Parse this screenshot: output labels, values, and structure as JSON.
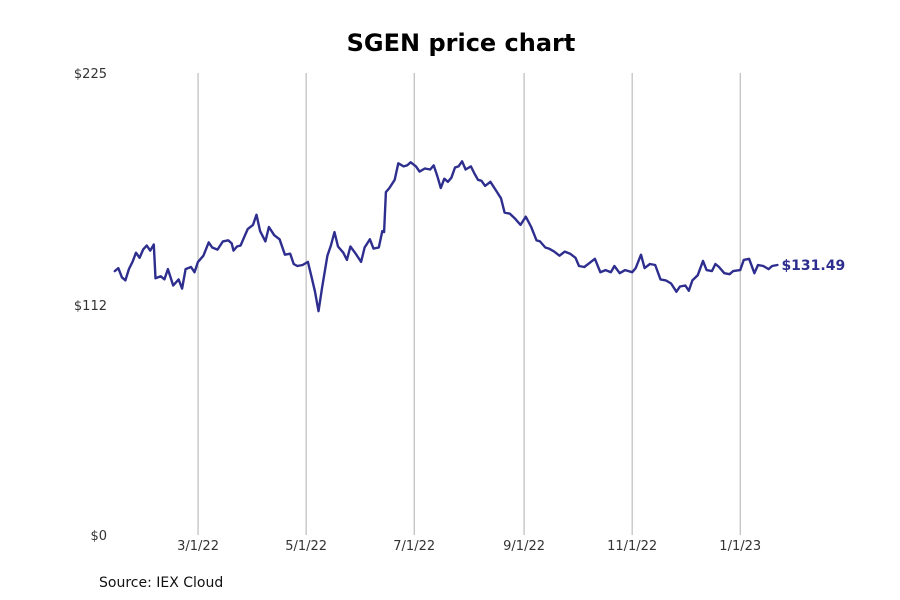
{
  "chart_data": {
    "type": "line",
    "title": "SGEN price chart",
    "xlabel": "",
    "ylabel": "",
    "ylim": [
      0,
      225
    ],
    "xlim": [
      "2022-01-12",
      "2023-02-28"
    ],
    "y_ticks": [
      {
        "value": 0,
        "label": "$0"
      },
      {
        "value": 112,
        "label": "$112"
      },
      {
        "value": 225,
        "label": "$225"
      }
    ],
    "x_ticks": [
      {
        "date": "2022-03-01",
        "label": "3/1/22"
      },
      {
        "date": "2022-05-01",
        "label": "5/1/22"
      },
      {
        "date": "2022-07-01",
        "label": "7/1/22"
      },
      {
        "date": "2022-09-01",
        "label": "9/1/22"
      },
      {
        "date": "2022-11-01",
        "label": "11/1/22"
      },
      {
        "date": "2023-01-01",
        "label": "1/1/23"
      }
    ],
    "grid": "vertical",
    "series": [
      {
        "color": "#2e2e8f",
        "points": [
          [
            "2022-01-13",
            128.5
          ],
          [
            "2022-01-15",
            130.0
          ],
          [
            "2022-01-17",
            125.5
          ],
          [
            "2022-01-19",
            124.0
          ],
          [
            "2022-01-21",
            129.5
          ],
          [
            "2022-01-23",
            133.0
          ],
          [
            "2022-01-25",
            137.5
          ],
          [
            "2022-01-27",
            135.0
          ],
          [
            "2022-01-29",
            139.0
          ],
          [
            "2022-01-31",
            141.0
          ],
          [
            "2022-02-02",
            138.5
          ],
          [
            "2022-02-04",
            141.5
          ],
          [
            "2022-02-05",
            125.0
          ],
          [
            "2022-02-08",
            126.0
          ],
          [
            "2022-02-10",
            124.5
          ],
          [
            "2022-02-12",
            129.5
          ],
          [
            "2022-02-15",
            121.5
          ],
          [
            "2022-02-18",
            124.5
          ],
          [
            "2022-02-20",
            120.0
          ],
          [
            "2022-02-22",
            129.5
          ],
          [
            "2022-02-25",
            130.5
          ],
          [
            "2022-02-27",
            128.0
          ],
          [
            "2022-03-01",
            133.0
          ],
          [
            "2022-03-04",
            136.0
          ],
          [
            "2022-03-07",
            142.5
          ],
          [
            "2022-03-09",
            140.0
          ],
          [
            "2022-03-12",
            139.0
          ],
          [
            "2022-03-15",
            143.0
          ],
          [
            "2022-03-18",
            143.5
          ],
          [
            "2022-03-20",
            142.0
          ],
          [
            "2022-03-21",
            138.5
          ],
          [
            "2022-03-23",
            140.5
          ],
          [
            "2022-03-25",
            141.0
          ],
          [
            "2022-03-27",
            145.0
          ],
          [
            "2022-03-29",
            149.0
          ],
          [
            "2022-04-01",
            151.0
          ],
          [
            "2022-04-03",
            156.0
          ],
          [
            "2022-04-05",
            148.0
          ],
          [
            "2022-04-08",
            143.0
          ],
          [
            "2022-04-10",
            150.0
          ],
          [
            "2022-04-13",
            146.0
          ],
          [
            "2022-04-16",
            144.0
          ],
          [
            "2022-04-19",
            136.5
          ],
          [
            "2022-04-22",
            137.0
          ],
          [
            "2022-04-24",
            132.0
          ],
          [
            "2022-04-26",
            131.0
          ],
          [
            "2022-04-29",
            131.5
          ],
          [
            "2022-05-02",
            133.0
          ],
          [
            "2022-05-04",
            126.0
          ],
          [
            "2022-05-06",
            118.5
          ],
          [
            "2022-05-08",
            109.0
          ],
          [
            "2022-05-10",
            120.5
          ],
          [
            "2022-05-13",
            136.0
          ],
          [
            "2022-05-15",
            141.0
          ],
          [
            "2022-05-17",
            147.5
          ],
          [
            "2022-05-19",
            140.5
          ],
          [
            "2022-05-22",
            137.5
          ],
          [
            "2022-05-24",
            134.0
          ],
          [
            "2022-05-26",
            140.5
          ],
          [
            "2022-05-29",
            137.0
          ],
          [
            "2022-06-01",
            133.0
          ],
          [
            "2022-06-03",
            140.0
          ],
          [
            "2022-06-06",
            144.0
          ],
          [
            "2022-06-08",
            139.5
          ],
          [
            "2022-06-11",
            140.0
          ],
          [
            "2022-06-13",
            148.0
          ],
          [
            "2022-06-14",
            147.5
          ],
          [
            "2022-06-15",
            167.0
          ],
          [
            "2022-06-17",
            169.0
          ],
          [
            "2022-06-20",
            173.0
          ],
          [
            "2022-06-22",
            181.0
          ],
          [
            "2022-06-25",
            179.5
          ],
          [
            "2022-06-27",
            180.0
          ],
          [
            "2022-06-29",
            181.5
          ],
          [
            "2022-07-02",
            179.5
          ],
          [
            "2022-07-04",
            177.0
          ],
          [
            "2022-07-07",
            178.5
          ],
          [
            "2022-07-10",
            178.0
          ],
          [
            "2022-07-12",
            180.0
          ],
          [
            "2022-07-14",
            175.0
          ],
          [
            "2022-07-16",
            169.0
          ],
          [
            "2022-07-18",
            173.5
          ],
          [
            "2022-07-20",
            172.0
          ],
          [
            "2022-07-22",
            174.0
          ],
          [
            "2022-07-24",
            179.0
          ],
          [
            "2022-07-26",
            179.5
          ],
          [
            "2022-07-28",
            182.0
          ],
          [
            "2022-07-30",
            178.0
          ],
          [
            "2022-08-02",
            179.5
          ],
          [
            "2022-08-04",
            176.0
          ],
          [
            "2022-08-06",
            173.0
          ],
          [
            "2022-08-08",
            172.5
          ],
          [
            "2022-08-10",
            170.0
          ],
          [
            "2022-08-13",
            172.0
          ],
          [
            "2022-08-16",
            168.0
          ],
          [
            "2022-08-19",
            164.0
          ],
          [
            "2022-08-21",
            157.0
          ],
          [
            "2022-08-24",
            156.5
          ],
          [
            "2022-08-27",
            154.0
          ],
          [
            "2022-08-30",
            151.0
          ],
          [
            "2022-09-02",
            155.0
          ],
          [
            "2022-09-05",
            150.0
          ],
          [
            "2022-09-08",
            143.5
          ],
          [
            "2022-09-10",
            143.0
          ],
          [
            "2022-09-13",
            140.0
          ],
          [
            "2022-09-15",
            139.5
          ],
          [
            "2022-09-18",
            138.0
          ],
          [
            "2022-09-21",
            136.0
          ],
          [
            "2022-09-24",
            138.0
          ],
          [
            "2022-09-27",
            137.0
          ],
          [
            "2022-09-30",
            135.0
          ],
          [
            "2022-10-02",
            131.0
          ],
          [
            "2022-10-05",
            130.5
          ],
          [
            "2022-10-08",
            132.5
          ],
          [
            "2022-10-11",
            134.5
          ],
          [
            "2022-10-14",
            128.0
          ],
          [
            "2022-10-17",
            129.0
          ],
          [
            "2022-10-20",
            128.0
          ],
          [
            "2022-10-22",
            131.0
          ],
          [
            "2022-10-25",
            127.5
          ],
          [
            "2022-10-28",
            129.0
          ],
          [
            "2022-11-01",
            128.0
          ],
          [
            "2022-11-03",
            130.0
          ],
          [
            "2022-11-06",
            136.5
          ],
          [
            "2022-11-08",
            130.0
          ],
          [
            "2022-11-11",
            132.0
          ],
          [
            "2022-11-14",
            131.5
          ],
          [
            "2022-11-17",
            124.5
          ],
          [
            "2022-11-20",
            124.0
          ],
          [
            "2022-11-23",
            122.5
          ],
          [
            "2022-11-26",
            118.5
          ],
          [
            "2022-11-28",
            121.0
          ],
          [
            "2022-12-01",
            121.5
          ],
          [
            "2022-12-03",
            119.0
          ],
          [
            "2022-12-05",
            124.0
          ],
          [
            "2022-12-08",
            126.5
          ],
          [
            "2022-12-11",
            133.5
          ],
          [
            "2022-12-13",
            129.0
          ],
          [
            "2022-12-16",
            128.5
          ],
          [
            "2022-12-18",
            132.0
          ],
          [
            "2022-12-20",
            130.5
          ],
          [
            "2022-12-23",
            127.5
          ],
          [
            "2022-12-26",
            127.0
          ],
          [
            "2022-12-28",
            128.5
          ],
          [
            "2023-01-01",
            129.0
          ],
          [
            "2023-01-03",
            134.0
          ],
          [
            "2023-01-06",
            134.5
          ],
          [
            "2023-01-09",
            127.5
          ],
          [
            "2023-01-11",
            131.5
          ],
          [
            "2023-01-14",
            131.0
          ],
          [
            "2023-01-17",
            129.5
          ],
          [
            "2023-01-19",
            131.0
          ],
          [
            "2023-01-22",
            131.5
          ]
        ]
      }
    ],
    "last_value_label": "$131.49",
    "source": "Source: IEX Cloud"
  }
}
